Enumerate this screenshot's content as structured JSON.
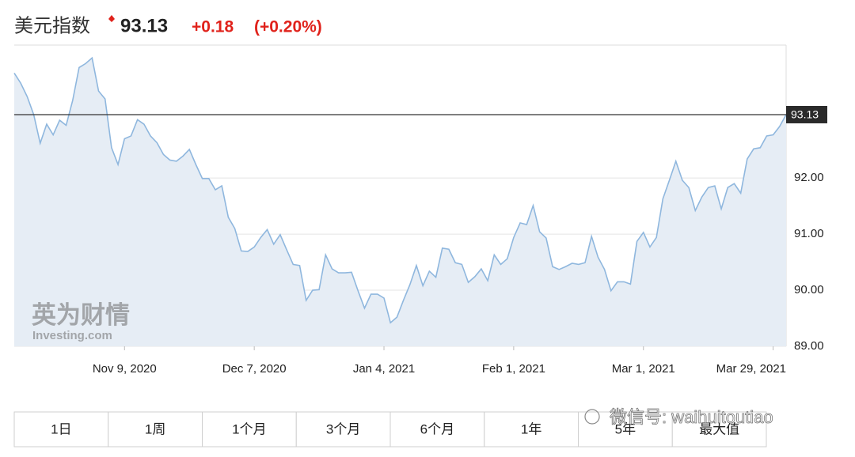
{
  "header": {
    "title": "美元指数",
    "price": "93.13",
    "change": "+0.18",
    "change_pct": "(+0.20%)"
  },
  "chart_data": {
    "type": "line",
    "color": "#8fb7de",
    "fill": "#e6edf5",
    "values": [
      93.87,
      93.69,
      93.45,
      93.13,
      92.62,
      92.96,
      92.77,
      93.03,
      92.94,
      93.38,
      93.97,
      94.04,
      94.14,
      93.55,
      93.41,
      92.54,
      92.24,
      92.7,
      92.75,
      93.04,
      92.96,
      92.75,
      92.63,
      92.42,
      92.32,
      92.3,
      92.39,
      92.51,
      92.24,
      91.99,
      91.99,
      91.79,
      91.86,
      91.3,
      91.1,
      90.7,
      90.69,
      90.77,
      90.94,
      91.08,
      90.82,
      90.99,
      90.72,
      90.46,
      90.44,
      89.82,
      90.0,
      90.01,
      90.63,
      90.38,
      90.31,
      90.31,
      90.32,
      89.99,
      89.68,
      89.93,
      89.93,
      89.86,
      89.42,
      89.52,
      89.82,
      90.1,
      90.44,
      90.08,
      90.34,
      90.23,
      90.75,
      90.73,
      90.49,
      90.46,
      90.14,
      90.24,
      90.38,
      90.17,
      90.63,
      90.46,
      90.56,
      90.94,
      91.2,
      91.17,
      91.51,
      91.04,
      90.93,
      90.42,
      90.37,
      90.42,
      90.48,
      90.46,
      90.49,
      90.96,
      90.59,
      90.37,
      89.99,
      90.15,
      90.15,
      90.11,
      90.87,
      91.03,
      90.77,
      90.94,
      91.63,
      91.96,
      92.3,
      91.96,
      91.83,
      91.42,
      91.66,
      91.83,
      91.86,
      91.45,
      91.83,
      91.9,
      91.73,
      92.34,
      92.52,
      92.54,
      92.75,
      92.77,
      92.92,
      93.13
    ],
    "xlim": [
      0,
      119
    ],
    "xticks": [
      {
        "value": 17,
        "label": "Nov 9, 2020"
      },
      {
        "value": 37,
        "label": "Dec 7, 2020"
      },
      {
        "value": 57,
        "label": "Jan 4, 2021"
      },
      {
        "value": 77,
        "label": "Feb 1, 2021"
      },
      {
        "value": 97,
        "label": "Mar 1, 2021"
      },
      {
        "value": 117,
        "label": "Mar 29, 2021"
      }
    ],
    "ylim": [
      89,
      94.37
    ],
    "yticks": [
      {
        "value": 89,
        "label": "89.00"
      },
      {
        "value": 90,
        "label": "90.00"
      },
      {
        "value": 91,
        "label": "91.00"
      },
      {
        "value": 92,
        "label": "92.00"
      }
    ],
    "grid": true,
    "current_value": 93.13,
    "watermark": "英为财情",
    "watermark_sub": "Investing.com"
  },
  "buttons": [
    "1日",
    "1周",
    "1个月",
    "3个月",
    "6个月",
    "1年",
    "5年",
    "最大值"
  ],
  "footer_watermark": "微信号: waihuitoutiao"
}
